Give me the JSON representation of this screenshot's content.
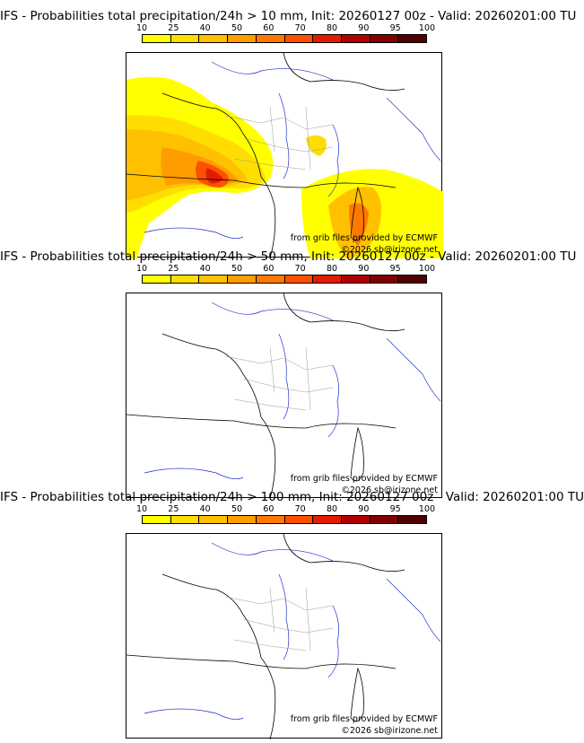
{
  "legend": {
    "ticks": [
      "10",
      "25",
      "40",
      "50",
      "60",
      "70",
      "80",
      "90",
      "95",
      "100"
    ],
    "colors": [
      "#ffff00",
      "#ffdd00",
      "#ffc000",
      "#ff9d00",
      "#ff7800",
      "#ff5000",
      "#e01d00",
      "#b00000",
      "#820000",
      "#500000"
    ]
  },
  "panels": [
    {
      "title": "IFS - Probabilities total precipitation/24h > 10 mm, Init: 20260127 00z - Valid: 20260201:00 TU"
    },
    {
      "title": "IFS - Probabilities total precipitation/24h > 50 mm, Init: 20260127 00z - Valid: 20260201:00 TU"
    },
    {
      "title": "IFS - Probabilities total precipitation/24h > 100 mm, Init: 20260127 00z - Valid: 20260201:00 TU"
    }
  ],
  "map": {
    "source_credit": "from grib files provided by ECMWF",
    "copyright": "©2026 sb@irizone.net"
  }
}
